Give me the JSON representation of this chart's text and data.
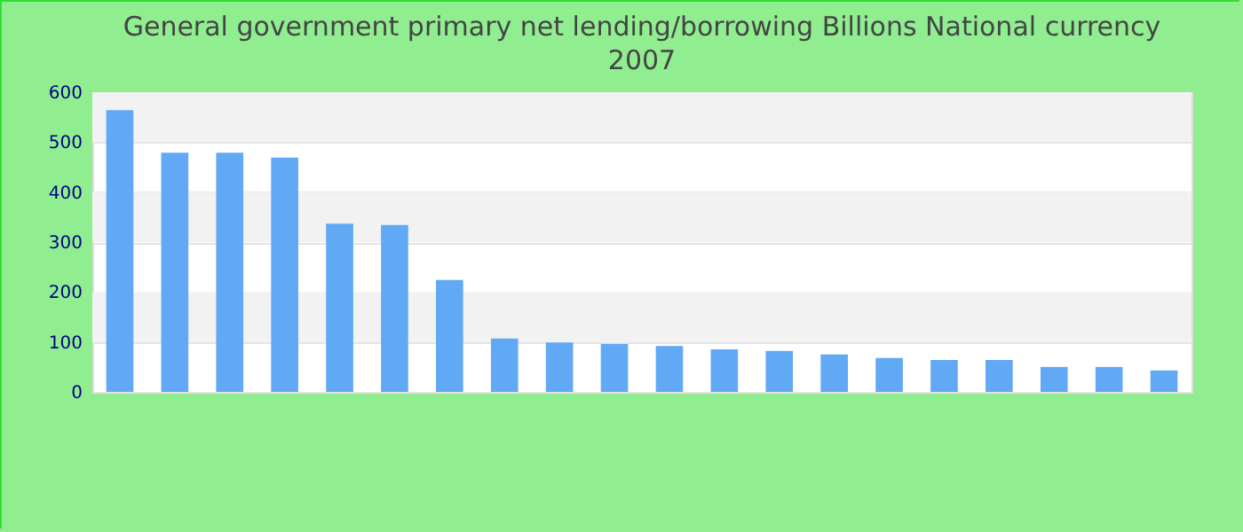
{
  "chart_data": {
    "type": "bar",
    "title": "General government primary net lending/borrowing Billions National currency",
    "subtitle": "2007",
    "categories": [
      null,
      null,
      null,
      null,
      null,
      null,
      null,
      null,
      null,
      null,
      null,
      null,
      null,
      null,
      null,
      null,
      null,
      null,
      null,
      null
    ],
    "values": [
      564,
      479,
      479,
      469,
      337,
      334,
      224,
      107,
      99,
      96,
      92,
      85,
      82,
      75,
      68,
      64,
      64,
      50,
      50,
      43
    ],
    "color": "#62a9f5",
    "ylim": [
      0,
      600
    ],
    "yticks": [
      0,
      100,
      200,
      300,
      400,
      500,
      600
    ],
    "grid": true
  }
}
